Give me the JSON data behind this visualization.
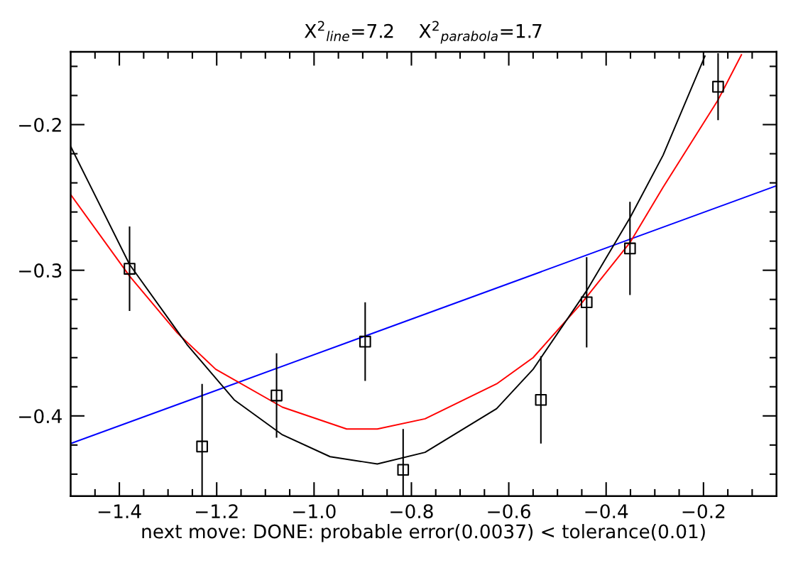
{
  "chart_data": {
    "type": "scatter",
    "title": "X$^{2}$$_{line}$=7.2    X$^{2}$$_{parabola}$=1.7",
    "xlabel": "next move: DONE: probable error(0.0037) < tolerance(0.01)",
    "xlim": [
      -1.5,
      -0.05
    ],
    "ylim": [
      -0.455,
      -0.15
    ],
    "xticks": [
      {
        "value": -1.4,
        "label": "−1.4"
      },
      {
        "value": -1.2,
        "label": "−1.2"
      },
      {
        "value": -1.0,
        "label": "−1.0"
      },
      {
        "value": -0.8,
        "label": "−0.8"
      },
      {
        "value": -0.6,
        "label": "−0.6"
      },
      {
        "value": -0.4,
        "label": "−0.4"
      },
      {
        "value": -0.2,
        "label": "−0.2"
      },
      {
        "value": -1.45,
        "label": null
      },
      {
        "value": -1.35,
        "label": null
      },
      {
        "value": -1.3,
        "label": null
      },
      {
        "value": -1.25,
        "label": null
      },
      {
        "value": -1.15,
        "label": null
      },
      {
        "value": -1.1,
        "label": null
      },
      {
        "value": -1.05,
        "label": null
      },
      {
        "value": -0.95,
        "label": null
      },
      {
        "value": -0.9,
        "label": null
      },
      {
        "value": -0.85,
        "label": null
      },
      {
        "value": -0.75,
        "label": null
      },
      {
        "value": -0.7,
        "label": null
      },
      {
        "value": -0.65,
        "label": null
      },
      {
        "value": -0.55,
        "label": null
      },
      {
        "value": -0.5,
        "label": null
      },
      {
        "value": -0.45,
        "label": null
      },
      {
        "value": -0.35,
        "label": null
      },
      {
        "value": -0.3,
        "label": null
      },
      {
        "value": -0.25,
        "label": null
      },
      {
        "value": -0.15,
        "label": null
      },
      {
        "value": -0.1,
        "label": null
      }
    ],
    "yticks": [
      {
        "value": -0.4,
        "label": "−0.4"
      },
      {
        "value": -0.3,
        "label": "−0.3"
      },
      {
        "value": -0.2,
        "label": "−0.2"
      },
      {
        "value": -0.44,
        "label": null
      },
      {
        "value": -0.42,
        "label": null
      },
      {
        "value": -0.38,
        "label": null
      },
      {
        "value": -0.36,
        "label": null
      },
      {
        "value": -0.34,
        "label": null
      },
      {
        "value": -0.32,
        "label": null
      },
      {
        "value": -0.28,
        "label": null
      },
      {
        "value": -0.26,
        "label": null
      },
      {
        "value": -0.24,
        "label": null
      },
      {
        "value": -0.22,
        "label": null
      },
      {
        "value": -0.18,
        "label": null
      },
      {
        "value": -0.16,
        "label": null
      }
    ],
    "series": [
      {
        "type": "line",
        "color": "#0000ff",
        "x": [
          -1.5,
          -0.05
        ],
        "values": [
          -0.419,
          -0.242
        ]
      },
      {
        "type": "line",
        "color": "#ff0000",
        "x": [
          -1.5,
          -1.379,
          -1.281,
          -1.202,
          -1.065,
          -0.933,
          -0.87,
          -0.772,
          -0.625,
          -0.55,
          -0.449,
          -0.351,
          -0.283,
          -0.17,
          -0.122
        ],
        "values": [
          -0.248,
          -0.304,
          -0.343,
          -0.368,
          -0.394,
          -0.409,
          -0.409,
          -0.402,
          -0.378,
          -0.36,
          -0.322,
          -0.281,
          -0.243,
          -0.183,
          -0.152
        ]
      },
      {
        "type": "line",
        "color": "#000000",
        "x": [
          -1.5,
          -1.379,
          -1.261,
          -1.164,
          -1.065,
          -0.967,
          -0.87,
          -0.772,
          -0.625,
          -0.55,
          -0.44,
          -0.351,
          -0.283,
          -0.197
        ],
        "values": [
          -0.215,
          -0.296,
          -0.351,
          -0.389,
          -0.413,
          -0.428,
          -0.433,
          -0.425,
          -0.395,
          -0.368,
          -0.314,
          -0.264,
          -0.221,
          -0.153
        ]
      },
      {
        "color": "#000000",
        "marker": "square",
        "x": [
          -1.379,
          -1.23,
          -1.077,
          -0.895,
          -0.817,
          -0.534,
          -0.44,
          -0.351,
          -0.17
        ],
        "values": [
          -0.299,
          -0.421,
          -0.386,
          -0.349,
          -0.437,
          -0.389,
          -0.322,
          -0.285,
          -0.174
        ],
        "errors": [
          0.029,
          0.043,
          0.029,
          0.027,
          0.028,
          0.03,
          0.031,
          0.032,
          0.023
        ]
      }
    ]
  }
}
